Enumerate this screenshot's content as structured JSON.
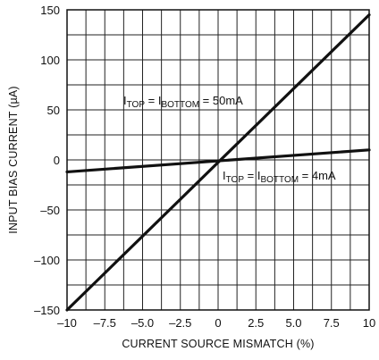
{
  "chart_data": {
    "type": "line",
    "title": "",
    "xlabel": "CURRENT SOURCE MISMATCH (%)",
    "ylabel": "INPUT BIAS CURRENT (µA)",
    "xlim": [
      -10,
      10
    ],
    "ylim": [
      -150,
      150
    ],
    "x_ticks": [
      -10,
      -7.5,
      -5.0,
      -2.5,
      0,
      2.5,
      5.0,
      7.5,
      10
    ],
    "x_tick_labels": [
      "–10",
      "–7.5",
      "–5.0",
      "–2.5",
      "0",
      "2.5",
      "5.0",
      "7.5",
      "10"
    ],
    "y_ticks": [
      150,
      100,
      50,
      0,
      -50,
      -100,
      -150
    ],
    "y_tick_labels": [
      "150",
      "100",
      "50",
      "0",
      "–50",
      "–100",
      "–150"
    ],
    "x_grid_step": 1.25,
    "y_grid_step": 25,
    "grid": true,
    "series": [
      {
        "label_main": "I",
        "label_sub1": "TOP",
        "label_eq": " = I",
        "label_sub2": "BOTTOM",
        "label_val": " = 50mA",
        "x": [
          -10,
          10
        ],
        "y": [
          -150,
          145
        ]
      },
      {
        "label_main": "I",
        "label_sub1": "TOP",
        "label_eq": " = I",
        "label_sub2": "BOTTOM",
        "label_val": " = 4mA",
        "x": [
          -10,
          10
        ],
        "y": [
          -12,
          10
        ]
      }
    ]
  }
}
